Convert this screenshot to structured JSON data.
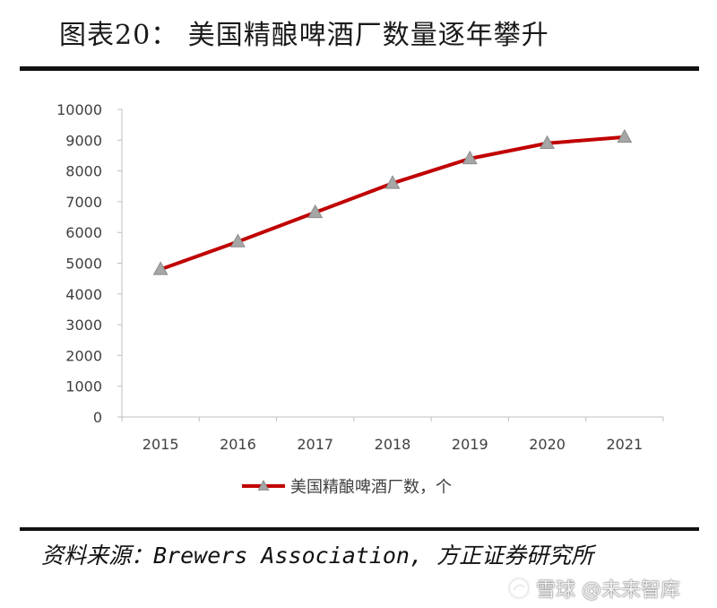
{
  "figure": {
    "title": "图表20： 美国精酿啤酒厂数量逐年攀升",
    "source": "资料来源：Brewers Association, 方正证券研究所"
  },
  "watermark": {
    "text": "雪球 @未来智库",
    "icon": "snowball-logo-icon"
  },
  "chart_data": {
    "type": "line",
    "title": "",
    "xlabel": "",
    "ylabel": "",
    "categories": [
      "2015",
      "2016",
      "2017",
      "2018",
      "2019",
      "2020",
      "2021"
    ],
    "series": [
      {
        "name": "美国精酿啤酒厂数，个",
        "values": [
          4800,
          5700,
          6650,
          7600,
          8400,
          8900,
          9100
        ],
        "line_color": "#c00000",
        "marker": "triangle",
        "marker_color": "#a6a6a6"
      }
    ],
    "ylim": [
      0,
      10000
    ],
    "yticks": [
      0,
      1000,
      2000,
      3000,
      4000,
      5000,
      6000,
      7000,
      8000,
      9000,
      10000
    ],
    "grid": false,
    "legend": "bottom"
  }
}
